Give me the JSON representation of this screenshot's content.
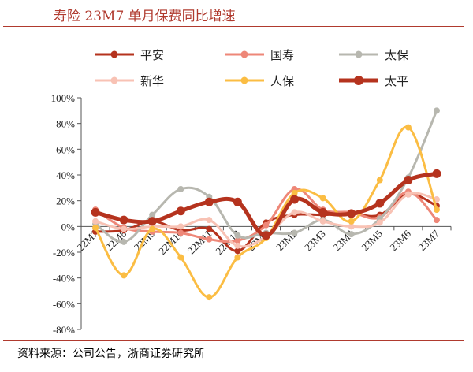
{
  "title": "寿险 23M7 单月保费同比增速",
  "source": "资料来源：公司公告，浙商证券研究所",
  "chart_data": {
    "type": "line",
    "categories": [
      "22M7",
      "22M8",
      "22M9",
      "22M10",
      "22M11",
      "22M12",
      "23M1",
      "23M2",
      "23M3",
      "23M4",
      "23M5",
      "23M6",
      "23M7"
    ],
    "ylim": [
      -80,
      100
    ],
    "yticks": [
      -80,
      -60,
      -40,
      -20,
      0,
      20,
      40,
      60,
      80,
      100
    ],
    "ytick_labels": [
      "-80%",
      "-60%",
      "-40%",
      "-20%",
      "0%",
      "20%",
      "40%",
      "60%",
      "80%",
      "100%"
    ],
    "grid": false,
    "legend": "top",
    "series": [
      {
        "name": "平安",
        "color": "#b5331e",
        "marker": true,
        "width": 3,
        "values": [
          -4,
          -3,
          4,
          -3,
          -2,
          -19,
          3,
          9,
          9,
          10,
          9,
          25,
          16
        ]
      },
      {
        "name": "国寿",
        "color": "#ee8778",
        "marker": true,
        "width": 3,
        "values": [
          13,
          -1,
          -4,
          -5,
          -10,
          -11,
          1,
          29,
          13,
          11,
          7,
          27,
          5
        ]
      },
      {
        "name": "太保",
        "color": "#b7b7af",
        "marker": true,
        "width": 3,
        "values": [
          2,
          -12,
          9,
          29,
          23,
          -7,
          -5,
          -5,
          5,
          -6,
          6,
          38,
          90
        ]
      },
      {
        "name": "新华",
        "color": "#f8c2b4",
        "marker": true,
        "width": 3,
        "values": [
          4,
          -2,
          0,
          0,
          5,
          -15,
          -8,
          11,
          4,
          0,
          3,
          25,
          21
        ]
      },
      {
        "name": "人保",
        "color": "#fbbd43",
        "marker": true,
        "width": 3,
        "values": [
          -1,
          -38,
          -2,
          -24,
          -55,
          -24,
          -9,
          26,
          22,
          4,
          36,
          77,
          13
        ]
      },
      {
        "name": "太平",
        "color": "#b5331e",
        "marker": true,
        "width": 5,
        "values": [
          11,
          5,
          4,
          12,
          19,
          19,
          -7,
          21,
          11,
          10,
          18,
          36,
          41
        ]
      }
    ]
  }
}
